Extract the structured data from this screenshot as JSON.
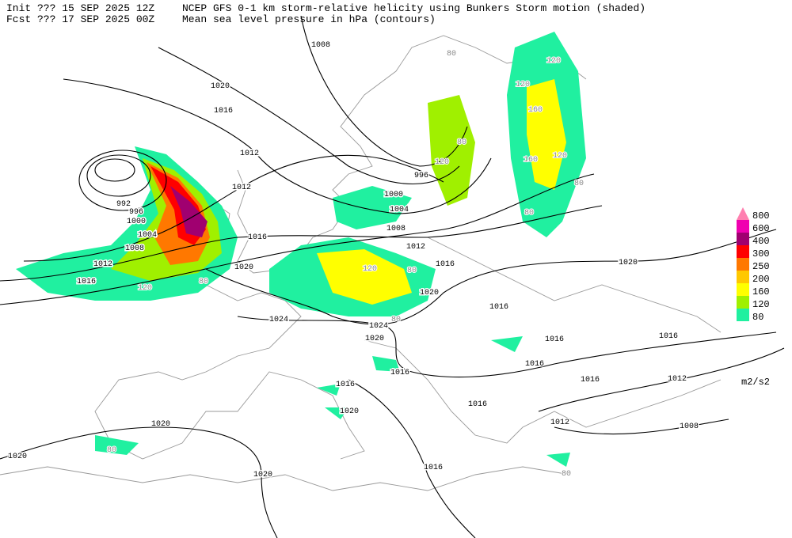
{
  "header": {
    "line1_left": "Init  ??? 15 SEP 2025 12Z",
    "line1_right": "NCEP GFS 0-1 km storm-relative helicity using Bunkers Storm motion (shaded)",
    "line2_left": "Fcst ??? 17 SEP 2025 00Z",
    "line2_right": "Mean sea level pressure in hPa (contours)"
  },
  "legend": {
    "levels": [
      "800",
      "600",
      "400",
      "300",
      "250",
      "200",
      "160",
      "120",
      "80"
    ],
    "colors": [
      "#ff80b0",
      "#f000b0",
      "#a00070",
      "#ff0000",
      "#ff7800",
      "#ffc800",
      "#ffff00",
      "#a0f000",
      "#20f0a0"
    ],
    "unit": "m2/s2"
  },
  "contour_labels": [
    "1008",
    "1020",
    "1016",
    "1012",
    "1012",
    "996",
    "1000",
    "1004",
    "1008",
    "1012",
    "1016",
    "1016",
    "1020",
    "1020",
    "1024",
    "1024",
    "1020",
    "1016",
    "1016",
    "1016",
    "1020",
    "1020",
    "1020",
    "1020",
    "1016",
    "1012",
    "1008",
    "1012",
    "1016",
    "1016",
    "1016",
    "1016",
    "1016",
    "1020",
    "1016",
    "1012",
    "1008",
    "1004",
    "1000",
    "996",
    "992"
  ],
  "helicity_labels": [
    "120",
    "120",
    "160",
    "160",
    "120",
    "80",
    "80",
    "80",
    "120",
    "120",
    "80",
    "80",
    "80",
    "80",
    "80",
    "120",
    "80"
  ]
}
